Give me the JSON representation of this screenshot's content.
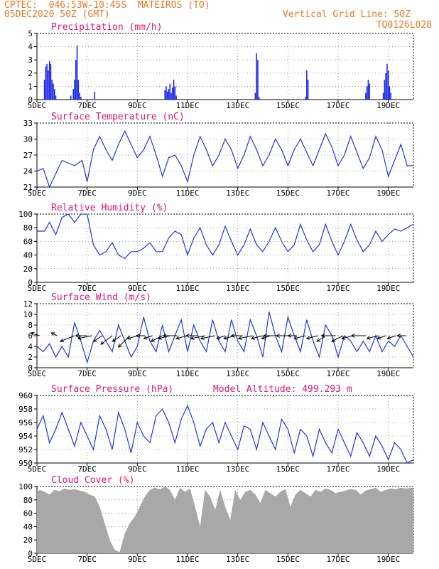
{
  "header": {
    "line1": "CPTEC:  046:53W-10:45S  MATEIROS (TO)",
    "line2": "05DEC2020 50Z (GMT)",
    "grid_note": "Vertical Grid Line: 50Z",
    "model_code": "TQ0126L028"
  },
  "colors": {
    "series": "#2233dd",
    "bars": "#1f2be6",
    "cloud": "#a8a8a8",
    "title": "#e0147a",
    "header": "#e87722"
  },
  "chart_data": [
    {
      "type": "bar",
      "id": "precip",
      "title": "Precipitation (mm/h)",
      "ylim": [
        0,
        5
      ],
      "yticks": [
        0,
        1,
        2,
        3,
        4,
        5
      ],
      "xticks": [
        "5DEC",
        "7DEC",
        "9DEC",
        "11DEC",
        "13DEC",
        "15DEC",
        "17DEC",
        "19DEC"
      ],
      "x_range_days": [
        0,
        15
      ],
      "x": [
        0.3,
        0.35,
        0.4,
        0.45,
        0.5,
        0.55,
        0.6,
        0.65,
        0.7,
        0.75,
        1.35,
        1.45,
        1.5,
        1.55,
        1.6,
        1.65,
        1.7,
        1.75,
        2.3,
        5.1,
        5.15,
        5.2,
        5.25,
        5.3,
        5.35,
        5.4,
        5.45,
        5.5,
        5.55,
        8.7,
        8.75,
        8.8,
        8.85,
        10.7,
        10.75,
        10.8,
        13.1,
        13.15,
        13.2,
        13.25,
        13.8,
        13.85,
        13.9,
        13.95,
        14.0,
        14.05,
        14.1
      ],
      "values": [
        1.5,
        2.5,
        2.7,
        2.2,
        2.9,
        2.7,
        1.5,
        1.2,
        0.8,
        0.3,
        0.3,
        0.8,
        1.5,
        3.0,
        4.1,
        1.5,
        0.5,
        0.2,
        0.6,
        0.7,
        1.0,
        0.6,
        0.8,
        1.2,
        0.5,
        0.9,
        1.5,
        1.0,
        0.3,
        0.5,
        3.5,
        3.0,
        0.2,
        0.2,
        2.2,
        1.5,
        0.5,
        1.0,
        1.5,
        1.2,
        0.5,
        1.5,
        2.0,
        2.7,
        2.2,
        1.0,
        0.5
      ]
    },
    {
      "type": "line",
      "id": "temp",
      "title": "Surface Temperature (nC)",
      "ylim": [
        21,
        33
      ],
      "yticks": [
        21,
        24,
        27,
        30,
        33
      ],
      "xticks": [
        "5DEC",
        "7DEC",
        "9DEC",
        "11DEC",
        "13DEC",
        "15DEC",
        "17DEC",
        "19DEC"
      ],
      "x": [
        0,
        0.25,
        0.5,
        0.6,
        0.75,
        1.0,
        1.5,
        1.8,
        2.0,
        2.25,
        2.5,
        2.75,
        3.0,
        3.25,
        3.5,
        3.75,
        4.0,
        4.25,
        4.5,
        4.75,
        5.0,
        5.25,
        5.5,
        5.75,
        6.0,
        6.25,
        6.5,
        6.75,
        7.0,
        7.25,
        7.5,
        7.75,
        8.0,
        8.25,
        8.5,
        8.75,
        9.0,
        9.25,
        9.5,
        9.75,
        10.0,
        10.25,
        10.5,
        10.75,
        11.0,
        11.25,
        11.5,
        11.75,
        12.0,
        12.25,
        12.5,
        12.75,
        13.0,
        13.25,
        13.5,
        13.75,
        14.0,
        14.25,
        14.5,
        14.75,
        15.0
      ],
      "values": [
        24,
        24.5,
        21,
        22,
        23.5,
        26,
        25,
        26,
        22,
        28,
        30.5,
        28,
        26,
        29,
        31.5,
        29,
        26.5,
        28,
        30.5,
        27,
        23,
        26.5,
        27,
        25,
        22,
        27,
        30.5,
        28,
        25,
        27,
        30,
        28,
        24.5,
        27,
        30.5,
        28,
        25,
        27,
        30,
        28,
        25,
        28,
        30,
        27.5,
        25,
        28,
        31,
        28.5,
        25,
        27,
        30.5,
        27.5,
        24.5,
        26.5,
        30.5,
        28,
        23,
        26,
        29,
        25,
        25
      ]
    },
    {
      "type": "line",
      "id": "rh",
      "title": "Relative Humidity (%)",
      "ylim": [
        0,
        100
      ],
      "yticks": [
        0,
        20,
        40,
        60,
        80,
        100
      ],
      "xticks": [
        "5DEC",
        "7DEC",
        "9DEC",
        "11DEC",
        "13DEC",
        "15DEC",
        "17DEC",
        "19DEC"
      ],
      "x": [
        0,
        0.3,
        0.5,
        0.75,
        1.0,
        1.25,
        1.5,
        1.75,
        2.0,
        2.25,
        2.5,
        2.75,
        3.0,
        3.25,
        3.5,
        3.75,
        4.0,
        4.25,
        4.5,
        4.75,
        5.0,
        5.25,
        5.5,
        5.75,
        6.0,
        6.25,
        6.5,
        6.75,
        7.0,
        7.25,
        7.5,
        7.75,
        8.0,
        8.25,
        8.5,
        8.75,
        9.0,
        9.25,
        9.5,
        9.75,
        10.0,
        10.25,
        10.5,
        10.75,
        11.0,
        11.25,
        11.5,
        11.75,
        12.0,
        12.25,
        12.5,
        12.75,
        13.0,
        13.25,
        13.5,
        13.75,
        14.0,
        14.25,
        14.5,
        14.75,
        15.0
      ],
      "values": [
        75,
        75,
        88,
        70,
        95,
        100,
        88,
        100,
        100,
        55,
        40,
        45,
        58,
        40,
        35,
        45,
        45,
        50,
        58,
        45,
        45,
        65,
        75,
        70,
        40,
        65,
        80,
        55,
        40,
        55,
        82,
        60,
        40,
        55,
        78,
        55,
        45,
        60,
        80,
        60,
        45,
        55,
        85,
        62,
        45,
        55,
        85,
        60,
        40,
        60,
        85,
        62,
        45,
        55,
        75,
        60,
        70,
        78,
        75,
        80,
        85
      ]
    },
    {
      "type": "line",
      "id": "wind",
      "title": "Surface Wind (m/s)",
      "ylim": [
        0,
        12
      ],
      "yticks": [
        0,
        2,
        4,
        6,
        8,
        10,
        12
      ],
      "xticks": [
        "5DEC",
        "7DEC",
        "9DEC",
        "11DEC",
        "13DEC",
        "15DEC",
        "17DEC",
        "19DEC"
      ],
      "x": [
        0,
        0.25,
        0.5,
        0.75,
        1.0,
        1.25,
        1.5,
        1.75,
        2.0,
        2.25,
        2.5,
        2.75,
        3.0,
        3.25,
        3.5,
        3.75,
        4.0,
        4.25,
        4.5,
        4.75,
        5.0,
        5.25,
        5.5,
        5.75,
        6.0,
        6.25,
        6.5,
        6.75,
        7.0,
        7.25,
        7.5,
        7.75,
        8.0,
        8.25,
        8.5,
        8.75,
        9.0,
        9.25,
        9.5,
        9.75,
        10.0,
        10.25,
        10.5,
        10.75,
        11.0,
        11.25,
        11.5,
        11.75,
        12.0,
        12.25,
        12.5,
        12.75,
        13.0,
        13.25,
        13.5,
        13.75,
        14.0,
        14.25,
        14.5,
        14.75,
        15.0
      ],
      "values": [
        4,
        3,
        4.5,
        2,
        4,
        2,
        8.5,
        5,
        1,
        5,
        7,
        5,
        3,
        8,
        5,
        2,
        4,
        9.5,
        5,
        3,
        8,
        3,
        6,
        9,
        3,
        8,
        5,
        3,
        9,
        5,
        3,
        9,
        5,
        3,
        9,
        6,
        2,
        10.5,
        6,
        3,
        9.5,
        6,
        3,
        9,
        5,
        2,
        8,
        6,
        2,
        6,
        5,
        3,
        5,
        3,
        6,
        3,
        5,
        4,
        6,
        4,
        2
      ],
      "arrows_x": [
        0.1,
        0.8,
        1.5,
        2.0,
        2.2,
        2.6,
        3.0,
        3.35,
        3.7,
        4.05,
        4.3,
        4.6,
        5.0,
        5.3,
        5.6,
        6.0,
        6.4,
        6.7,
        7.1,
        7.5,
        7.9,
        8.2,
        8.6,
        9.0,
        9.3,
        9.6,
        10.0,
        10.35,
        10.7,
        11.2,
        11.5,
        11.9,
        12.2,
        12.6,
        13.1,
        13.6,
        13.9,
        14.3,
        14.7
      ],
      "arrows_u": [
        -3,
        -2,
        -5,
        -4,
        -5,
        -3,
        -4,
        -3,
        -4,
        -4,
        -3,
        -3,
        -4,
        -4,
        -5,
        -4,
        -4,
        -5,
        -5,
        -3,
        -4,
        -4,
        -5,
        -4,
        -3,
        -5,
        -4,
        -3,
        -4,
        -4,
        -3,
        -5,
        -4,
        -4,
        -5,
        -4,
        -3,
        -3,
        -3
      ],
      "arrows_v": [
        1,
        1,
        -2,
        0,
        -1,
        -2,
        -3,
        -2,
        -4,
        -1,
        0,
        -1,
        -2,
        -1,
        0,
        -1,
        0,
        -1,
        -1,
        -1,
        -1,
        0,
        -1,
        -1,
        -1,
        0,
        0,
        0,
        -1,
        -1,
        -2,
        0,
        -2,
        -1,
        0,
        -1,
        -1,
        -1,
        0
      ]
    },
    {
      "type": "line",
      "id": "pres",
      "title": "Surface Pressure (hPa)",
      "annotation": "Model Altitude: 499.293 m",
      "ylim": [
        950,
        960
      ],
      "yticks": [
        950,
        952,
        954,
        956,
        958,
        960
      ],
      "xticks": [
        "5DEC",
        "7DEC",
        "9DEC",
        "11DEC",
        "13DEC",
        "15DEC",
        "17DEC",
        "19DEC"
      ],
      "x": [
        0,
        0.25,
        0.5,
        0.75,
        1.0,
        1.25,
        1.5,
        1.75,
        2.0,
        2.25,
        2.5,
        2.75,
        3.0,
        3.25,
        3.5,
        3.75,
        4.0,
        4.25,
        4.5,
        4.75,
        5.0,
        5.25,
        5.5,
        5.75,
        6.0,
        6.25,
        6.5,
        6.75,
        7.0,
        7.25,
        7.5,
        7.75,
        8.0,
        8.25,
        8.5,
        8.75,
        9.0,
        9.25,
        9.5,
        9.75,
        10.0,
        10.25,
        10.5,
        10.75,
        11.0,
        11.25,
        11.5,
        11.75,
        12.0,
        12.25,
        12.5,
        12.75,
        13.0,
        13.25,
        13.5,
        13.75,
        14.0,
        14.25,
        14.5,
        14.75,
        15.0
      ],
      "values": [
        955,
        957,
        953,
        955,
        957.5,
        955,
        952.5,
        956,
        954,
        952,
        957,
        955,
        952,
        957.5,
        955,
        951.5,
        956,
        954,
        953,
        957,
        958,
        956,
        953,
        956.5,
        958.5,
        956,
        952.5,
        955,
        956,
        953,
        956,
        954,
        952,
        955.5,
        955,
        952,
        956,
        954,
        952,
        956.5,
        955,
        951.5,
        955,
        954,
        951,
        955,
        953,
        951.5,
        955,
        953,
        951,
        954.5,
        953,
        951,
        954,
        952.5,
        950.5,
        953,
        952,
        950,
        950.5
      ]
    },
    {
      "type": "area",
      "id": "cloud",
      "title": "Cloud Cover (%)",
      "ylim": [
        0,
        100
      ],
      "yticks": [
        0,
        20,
        40,
        60,
        80,
        100
      ],
      "xticks": [
        "5DEC",
        "7DEC",
        "9DEC",
        "11DEC",
        "13DEC",
        "15DEC",
        "17DEC",
        "19DEC"
      ],
      "x": [
        0,
        0.1,
        0.3,
        0.5,
        0.7,
        0.9,
        1.1,
        1.3,
        1.5,
        1.7,
        1.9,
        2.1,
        2.3,
        2.5,
        2.7,
        2.9,
        3.1,
        3.3,
        3.5,
        3.7,
        3.9,
        4.1,
        4.3,
        4.5,
        4.7,
        4.9,
        5.1,
        5.3,
        5.5,
        5.7,
        5.9,
        6.1,
        6.3,
        6.5,
        6.7,
        6.9,
        7.1,
        7.3,
        7.5,
        7.7,
        7.9,
        8.1,
        8.3,
        8.5,
        8.7,
        8.9,
        9.1,
        9.3,
        9.5,
        9.7,
        9.9,
        10.1,
        10.3,
        10.5,
        10.7,
        10.9,
        11.1,
        11.3,
        11.5,
        11.7,
        11.9,
        12.1,
        12.3,
        12.5,
        12.7,
        12.9,
        13.1,
        13.3,
        13.5,
        13.7,
        13.9,
        14.1,
        14.3,
        14.5,
        14.7,
        14.9,
        15.0
      ],
      "values": [
        90,
        95,
        92,
        88,
        95,
        93,
        97,
        95,
        96,
        94,
        92,
        88,
        85,
        70,
        45,
        20,
        5,
        2,
        30,
        45,
        55,
        70,
        85,
        95,
        98,
        96,
        100,
        95,
        80,
        98,
        92,
        97,
        70,
        40,
        95,
        85,
        65,
        95,
        70,
        50,
        95,
        80,
        92,
        95,
        88,
        75,
        95,
        90,
        85,
        92,
        96,
        70,
        88,
        95,
        90,
        85,
        95,
        92,
        97,
        95,
        90,
        92,
        94,
        96,
        95,
        88,
        94,
        96,
        98,
        92,
        95,
        97,
        96,
        98,
        97,
        98,
        98
      ]
    }
  ]
}
